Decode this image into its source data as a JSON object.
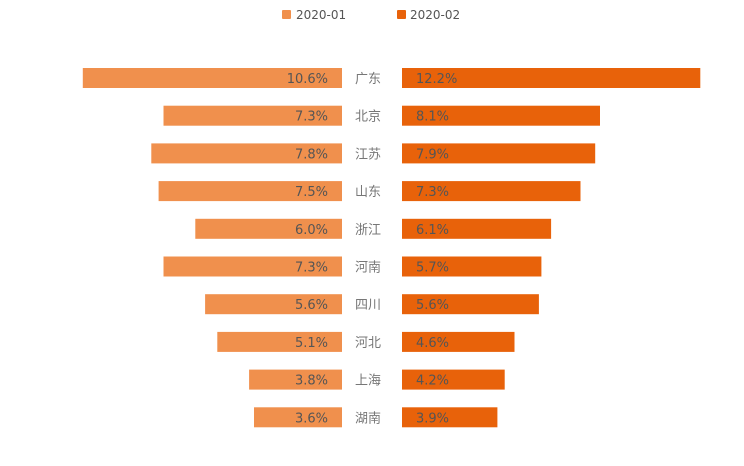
{
  "colors": {
    "series1": "#F0904D",
    "series2": "#E8620A",
    "background": "#ffffff",
    "label_text": "#555555",
    "category_text": "#777777"
  },
  "chart_data": {
    "type": "bar",
    "orientation": "horizontal-butterfly",
    "title": "",
    "xlabel": "",
    "ylabel": "",
    "legend_position": "top-center",
    "grid": false,
    "value_unit": "%",
    "categories": [
      "广东",
      "北京",
      "江苏",
      "山东",
      "浙江",
      "河南",
      "四川",
      "河北",
      "上海",
      "湖南"
    ],
    "series": [
      {
        "name": "2020-01",
        "values": [
          10.6,
          7.3,
          7.8,
          7.5,
          6.0,
          7.3,
          5.6,
          5.1,
          3.8,
          3.6
        ],
        "labels": [
          "10.6%",
          "7.3%",
          "7.8%",
          "7.5%",
          "6.0%",
          "7.3%",
          "5.6%",
          "5.1%",
          "3.8%",
          "3.6%"
        ]
      },
      {
        "name": "2020-02",
        "values": [
          12.2,
          8.1,
          7.9,
          7.3,
          6.1,
          5.7,
          5.6,
          4.6,
          4.2,
          3.9
        ],
        "labels": [
          "12.2%",
          "8.1%",
          "7.9%",
          "7.3%",
          "6.1%",
          "5.7%",
          "5.6%",
          "4.6%",
          "4.2%",
          "3.9%"
        ]
      }
    ]
  }
}
